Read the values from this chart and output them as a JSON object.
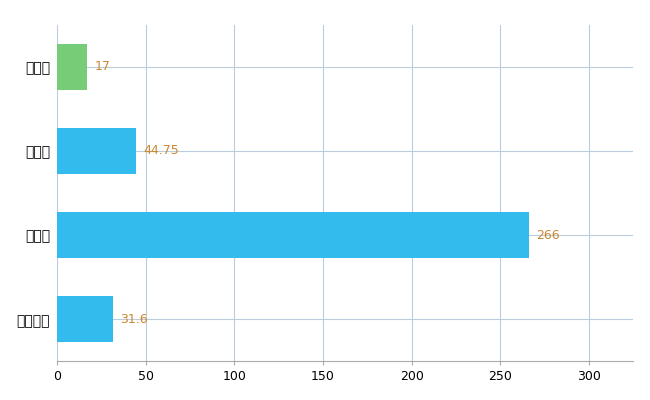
{
  "categories": [
    "匝瑳市",
    "県平均",
    "県最大",
    "全国平均"
  ],
  "values": [
    17,
    44.75,
    266,
    31.6
  ],
  "bar_colors": [
    "#77cc77",
    "#33bbee",
    "#33bbee",
    "#33bbee"
  ],
  "value_labels": [
    "17",
    "44.75",
    "266",
    "31.6"
  ],
  "label_color": "#cc8833",
  "xlim": [
    0,
    325
  ],
  "xticks": [
    0,
    50,
    100,
    150,
    200,
    250,
    300
  ],
  "background_color": "#ffffff",
  "grid_color": "#bbccdd",
  "bar_height": 0.55,
  "figwidth": 6.5,
  "figheight": 4.0,
  "dpi": 100
}
